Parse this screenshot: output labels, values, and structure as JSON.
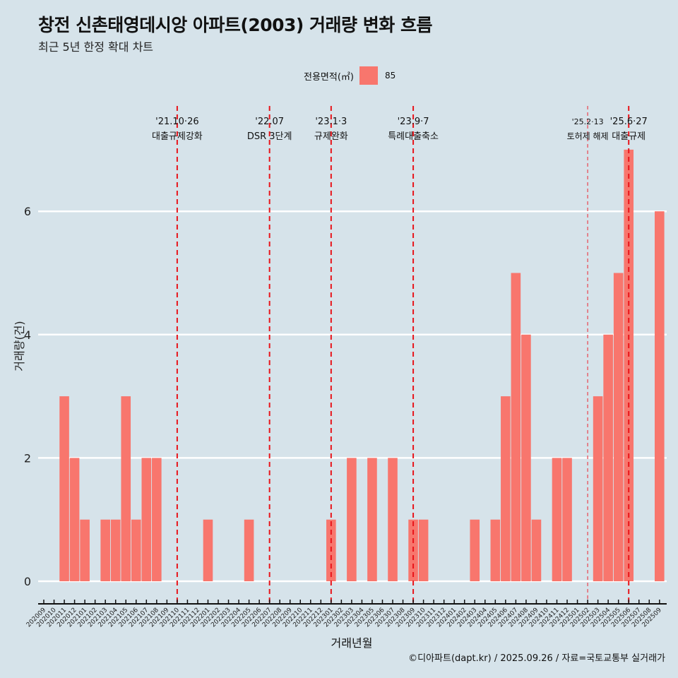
{
  "header": {
    "title": "창전 신촌태영데시앙 아파트(2003) 거래량 변화 흐름",
    "subtitle": "최근 5년 한정 확대 차트"
  },
  "legend": {
    "title": "전용면적(㎡)",
    "item": "85",
    "color": "#f8766d"
  },
  "caption": "©디아파트(dapt.kr) / 2025.09.26 / 자료=국토교통부 실거래가",
  "chart_data": {
    "type": "bar",
    "title": "창전 신촌태영데시앙 아파트(2003) 거래량 변화 흐름",
    "subtitle": "최근 5년 한정 확대 차트",
    "xlabel": "거래년월",
    "ylabel": "거래량(건)",
    "ylim": [
      0,
      7
    ],
    "yticks": [
      0,
      2,
      4,
      6
    ],
    "grid": true,
    "legend_position": "top",
    "categories": [
      "202009",
      "202010",
      "202011",
      "202012",
      "202101",
      "202102",
      "202103",
      "202104",
      "202105",
      "202106",
      "202107",
      "202108",
      "202109",
      "202110",
      "202111",
      "202112",
      "202201",
      "202202",
      "202203",
      "202204",
      "202205",
      "202206",
      "202207",
      "202208",
      "202209",
      "202210",
      "202211",
      "202212",
      "202301",
      "202302",
      "202303",
      "202304",
      "202305",
      "202306",
      "202307",
      "202308",
      "202309",
      "202310",
      "202311",
      "202312",
      "202401",
      "202402",
      "202403",
      "202404",
      "202405",
      "202406",
      "202407",
      "202408",
      "202409",
      "202410",
      "202411",
      "202412",
      "202501",
      "202502",
      "202503",
      "202504",
      "202505",
      "202506",
      "202507",
      "202508",
      "202509"
    ],
    "series": [
      {
        "name": "85",
        "color": "#f8766d",
        "values": [
          0,
          0,
          3,
          2,
          1,
          0,
          1,
          1,
          3,
          1,
          2,
          2,
          0,
          0,
          0,
          0,
          1,
          0,
          0,
          0,
          1,
          0,
          0,
          0,
          0,
          0,
          0,
          0,
          1,
          0,
          2,
          0,
          2,
          0,
          2,
          0,
          1,
          1,
          0,
          0,
          0,
          0,
          1,
          0,
          1,
          3,
          5,
          4,
          1,
          0,
          2,
          2,
          0,
          0,
          3,
          4,
          5,
          7,
          0,
          0,
          6
        ]
      }
    ],
    "annotations": [
      {
        "x": "202110",
        "date": "'21.10·26",
        "label": "대출규제강화",
        "style": "major"
      },
      {
        "x": "202207",
        "date": "'22.07",
        "label": "DSR 3단계",
        "style": "major"
      },
      {
        "x": "202301",
        "date": "'23.1·3",
        "label": "규제완화",
        "style": "major"
      },
      {
        "x": "202309",
        "date": "'23.9·7",
        "label": "특례대출축소",
        "style": "major"
      },
      {
        "x": "202502",
        "date": "'25.2·13",
        "label": "토허제 해제",
        "style": "minor"
      },
      {
        "x": "202506",
        "date": "'25.6·27",
        "label": "대출규제",
        "style": "major"
      }
    ]
  }
}
